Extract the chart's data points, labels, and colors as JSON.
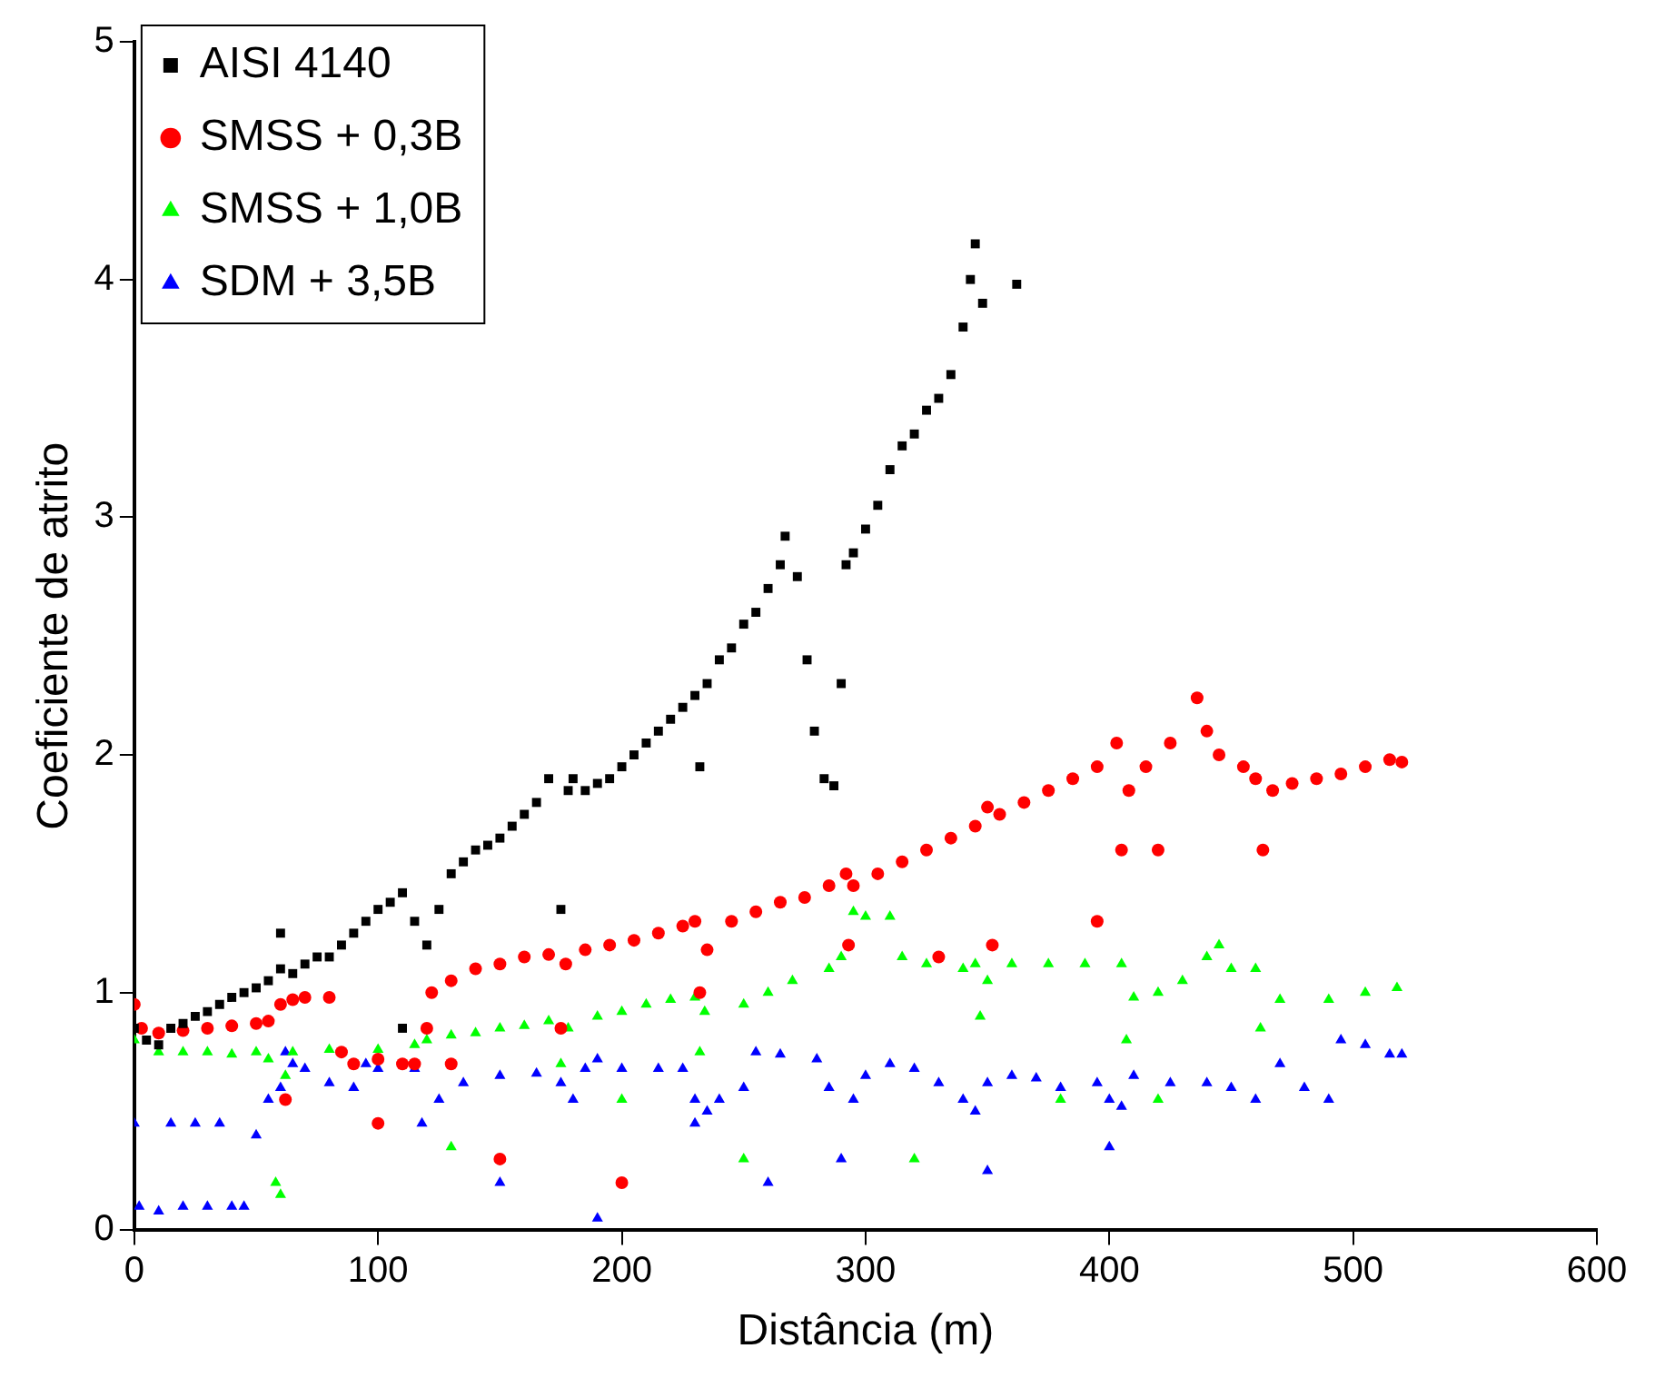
{
  "chart_data": {
    "type": "scatter",
    "xlabel": "Distância (m)",
    "ylabel": "Coeficiente de atrito",
    "xlim": [
      0,
      600
    ],
    "ylim": [
      0,
      5
    ],
    "xticks": [
      0,
      100,
      200,
      300,
      400,
      500,
      600
    ],
    "yticks": [
      0,
      1,
      2,
      3,
      4,
      5
    ],
    "grid": false,
    "legend": "top left",
    "series": [
      {
        "name": "AISI 4140",
        "color": "#000000",
        "marker": "square",
        "x": [
          0,
          5,
          10,
          15,
          20,
          25,
          30,
          35,
          40,
          45,
          50,
          55,
          60,
          60,
          65,
          70,
          75,
          80,
          85,
          90,
          95,
          100,
          105,
          110,
          110,
          115,
          120,
          125,
          130,
          135,
          140,
          145,
          150,
          155,
          160,
          165,
          170,
          175,
          178,
          180,
          185,
          190,
          195,
          200,
          205,
          210,
          215,
          220,
          225,
          230,
          232,
          235,
          240,
          245,
          250,
          255,
          260,
          265,
          267,
          272,
          276,
          279,
          283,
          287,
          290,
          292,
          295,
          300,
          305,
          310,
          315,
          320,
          325,
          330,
          335,
          340,
          343,
          345,
          348,
          362
        ],
        "values": [
          0.85,
          0.8,
          0.78,
          0.85,
          0.87,
          0.9,
          0.92,
          0.95,
          0.98,
          1.0,
          1.02,
          1.05,
          1.1,
          1.25,
          1.08,
          1.12,
          1.15,
          1.15,
          1.2,
          1.25,
          1.3,
          1.35,
          1.38,
          1.42,
          0.85,
          1.3,
          1.2,
          1.35,
          1.5,
          1.55,
          1.6,
          1.62,
          1.65,
          1.7,
          1.75,
          1.8,
          1.9,
          1.35,
          1.85,
          1.9,
          1.85,
          1.88,
          1.9,
          1.95,
          2.0,
          2.05,
          2.1,
          2.15,
          2.2,
          2.25,
          1.95,
          2.3,
          2.4,
          2.45,
          2.55,
          2.6,
          2.7,
          2.8,
          2.92,
          2.75,
          2.4,
          2.1,
          1.9,
          1.87,
          2.3,
          2.8,
          2.85,
          2.95,
          3.05,
          3.2,
          3.3,
          3.35,
          3.45,
          3.5,
          3.6,
          3.8,
          4.0,
          4.15,
          3.9,
          3.98
        ]
      },
      {
        "name": "SMSS + 0,3B",
        "color": "#ff0000",
        "marker": "circle",
        "x": [
          0,
          3,
          10,
          20,
          30,
          40,
          50,
          55,
          60,
          62,
          65,
          70,
          80,
          85,
          90,
          100,
          100,
          110,
          115,
          120,
          122,
          130,
          130,
          140,
          150,
          150,
          160,
          170,
          175,
          177,
          185,
          195,
          200,
          205,
          215,
          225,
          230,
          232,
          235,
          245,
          255,
          265,
          275,
          285,
          292,
          293,
          295,
          305,
          315,
          325,
          330,
          335,
          345,
          350,
          352,
          355,
          365,
          375,
          385,
          395,
          395,
          403,
          405,
          408,
          415,
          420,
          425,
          436,
          440,
          445,
          455,
          460,
          463,
          467,
          475,
          485,
          495,
          505,
          515,
          520
        ],
        "values": [
          0.95,
          0.85,
          0.83,
          0.84,
          0.85,
          0.86,
          0.87,
          0.88,
          0.95,
          0.55,
          0.97,
          0.98,
          0.98,
          0.75,
          0.7,
          0.72,
          0.45,
          0.7,
          0.7,
          0.85,
          1.0,
          1.05,
          0.7,
          1.1,
          1.12,
          0.3,
          1.15,
          1.16,
          0.85,
          1.12,
          1.18,
          1.2,
          0.2,
          1.22,
          1.25,
          1.28,
          1.3,
          1.0,
          1.18,
          1.3,
          1.34,
          1.38,
          1.4,
          1.45,
          1.5,
          1.2,
          1.45,
          1.5,
          1.55,
          1.6,
          1.15,
          1.65,
          1.7,
          1.78,
          1.2,
          1.75,
          1.8,
          1.85,
          1.9,
          1.95,
          1.3,
          2.05,
          1.6,
          1.85,
          1.95,
          1.6,
          2.05,
          2.24,
          2.1,
          2.0,
          1.95,
          1.9,
          1.6,
          1.85,
          1.88,
          1.9,
          1.92,
          1.95,
          1.98,
          1.97
        ]
      },
      {
        "name": "SMSS + 1,0B",
        "color": "#00ff00",
        "marker": "triangle",
        "x": [
          0,
          10,
          20,
          30,
          40,
          50,
          55,
          58,
          60,
          62,
          65,
          80,
          100,
          115,
          120,
          130,
          130,
          140,
          150,
          160,
          170,
          175,
          178,
          190,
          200,
          200,
          210,
          220,
          230,
          232,
          234,
          250,
          250,
          260,
          270,
          285,
          290,
          295,
          300,
          310,
          315,
          320,
          325,
          340,
          345,
          347,
          350,
          360,
          375,
          380,
          390,
          405,
          407,
          410,
          420,
          420,
          430,
          440,
          445,
          450,
          460,
          462,
          470,
          490,
          505,
          518
        ],
        "values": [
          0.8,
          0.75,
          0.75,
          0.75,
          0.74,
          0.75,
          0.72,
          0.2,
          0.15,
          0.65,
          0.75,
          0.76,
          0.76,
          0.78,
          0.8,
          0.82,
          0.35,
          0.83,
          0.85,
          0.86,
          0.88,
          0.7,
          0.85,
          0.9,
          0.92,
          0.55,
          0.95,
          0.97,
          0.98,
          0.75,
          0.92,
          0.95,
          0.3,
          1.0,
          1.05,
          1.1,
          1.15,
          1.34,
          1.32,
          1.32,
          1.15,
          0.3,
          1.12,
          1.1,
          1.12,
          0.9,
          1.05,
          1.12,
          1.12,
          0.55,
          1.12,
          1.12,
          0.8,
          0.98,
          1.0,
          0.55,
          1.05,
          1.15,
          1.2,
          1.1,
          1.1,
          0.85,
          0.97,
          0.97,
          1.0,
          1.02
        ]
      },
      {
        "name": "SDM + 3,5B",
        "color": "#0000ff",
        "marker": "triangle",
        "x": [
          0,
          2,
          10,
          15,
          20,
          25,
          30,
          35,
          40,
          45,
          50,
          55,
          60,
          62,
          65,
          70,
          80,
          90,
          95,
          100,
          115,
          118,
          125,
          135,
          150,
          150,
          165,
          175,
          180,
          185,
          190,
          190,
          200,
          215,
          225,
          230,
          230,
          235,
          240,
          250,
          255,
          260,
          265,
          280,
          285,
          290,
          295,
          300,
          310,
          320,
          330,
          340,
          345,
          350,
          350,
          360,
          370,
          380,
          395,
          400,
          400,
          405,
          410,
          425,
          440,
          450,
          460,
          470,
          480,
          490,
          495,
          505,
          515,
          520
        ],
        "values": [
          0.45,
          0.1,
          0.08,
          0.45,
          0.1,
          0.45,
          0.1,
          0.45,
          0.1,
          0.1,
          0.4,
          0.55,
          0.6,
          0.75,
          0.7,
          0.68,
          0.62,
          0.6,
          0.7,
          0.68,
          0.68,
          0.45,
          0.55,
          0.62,
          0.65,
          0.2,
          0.66,
          0.62,
          0.55,
          0.68,
          0.72,
          0.05,
          0.68,
          0.68,
          0.68,
          0.55,
          0.45,
          0.5,
          0.55,
          0.6,
          0.75,
          0.2,
          0.74,
          0.72,
          0.6,
          0.3,
          0.55,
          0.65,
          0.7,
          0.68,
          0.62,
          0.55,
          0.5,
          0.62,
          0.25,
          0.65,
          0.64,
          0.6,
          0.62,
          0.55,
          0.35,
          0.52,
          0.65,
          0.62,
          0.62,
          0.6,
          0.55,
          0.7,
          0.6,
          0.55,
          0.8,
          0.78,
          0.74,
          0.74
        ]
      }
    ]
  }
}
